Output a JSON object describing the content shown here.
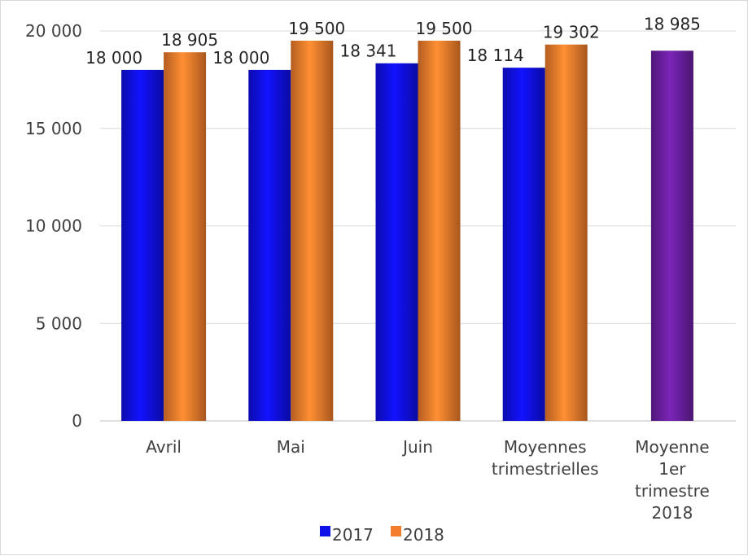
{
  "chart_data": {
    "type": "bar",
    "categories": [
      [
        "Avril"
      ],
      [
        "Mai"
      ],
      [
        "Juin"
      ],
      [
        "Moyennes",
        "trimestrielles"
      ],
      [
        "Moyenne",
        "1er",
        "trimestre",
        "2018"
      ]
    ],
    "series": [
      {
        "name": "2017",
        "color": "#1010e8",
        "values": [
          18000,
          18000,
          18341,
          18114,
          null
        ],
        "labels": [
          "18 000",
          "18 000",
          "18 341",
          "18 114",
          null
        ]
      },
      {
        "name": "2018",
        "color": "#f07c2c",
        "values": [
          18905,
          19500,
          19500,
          19302,
          null
        ],
        "labels": [
          "18 905",
          "19 500",
          "19 500",
          "19 302",
          null
        ]
      },
      {
        "name": "",
        "color": "#6a1fa0",
        "values": [
          null,
          null,
          null,
          null,
          18985
        ],
        "labels": [
          null,
          null,
          null,
          null,
          "18 985"
        ]
      }
    ],
    "yticks": [
      {
        "value": 0,
        "label": "0"
      },
      {
        "value": 5000,
        "label": "5 000"
      },
      {
        "value": 10000,
        "label": "10 000"
      },
      {
        "value": 15000,
        "label": "15 000"
      },
      {
        "value": 20000,
        "label": "20 000"
      }
    ],
    "ylim": [
      0,
      20000
    ],
    "grid": true,
    "legend_position": "bottom",
    "title": "",
    "xlabel": "",
    "ylabel": ""
  }
}
